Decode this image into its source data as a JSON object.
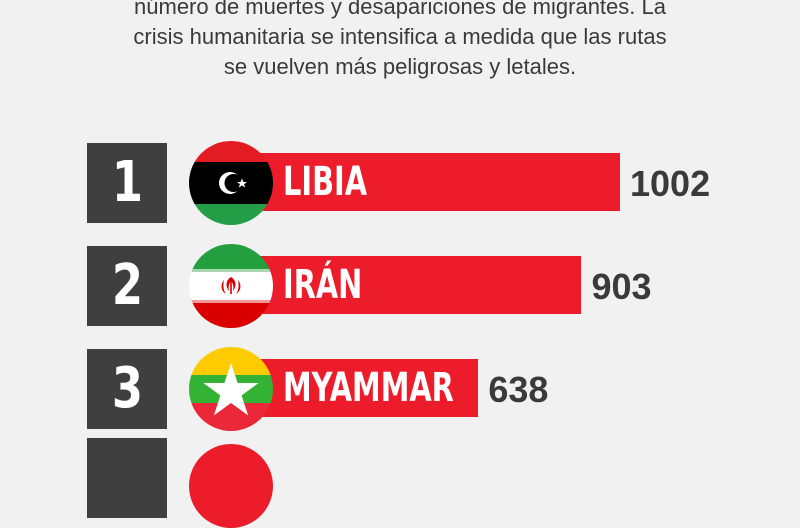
{
  "intro": {
    "lines": [
      "número de muertes y desapariciones de migrantes. La",
      "crisis humanitaria se intensifica a medida que las rutas",
      "se vuelven más peligrosas y letales."
    ]
  },
  "chart_data": {
    "type": "bar",
    "orientation": "horizontal",
    "ranks": [
      "1",
      "2",
      "3"
    ],
    "categories": [
      "LIBIA",
      "IRÁN",
      "MYAMMAR"
    ],
    "values": [
      1002,
      903,
      638
    ],
    "value_labels": [
      "1002",
      "903",
      "638"
    ],
    "title": "",
    "xlabel": "",
    "ylabel": "",
    "grid": false,
    "legend": "none",
    "colors": {
      "bar": "#ec1c2b",
      "rank_box": "#3f3f3f",
      "value_text": "#3a3a3a"
    },
    "flag_icons": [
      "libya-flag-icon",
      "iran-flag-icon",
      "myanmar-flag-icon"
    ]
  }
}
